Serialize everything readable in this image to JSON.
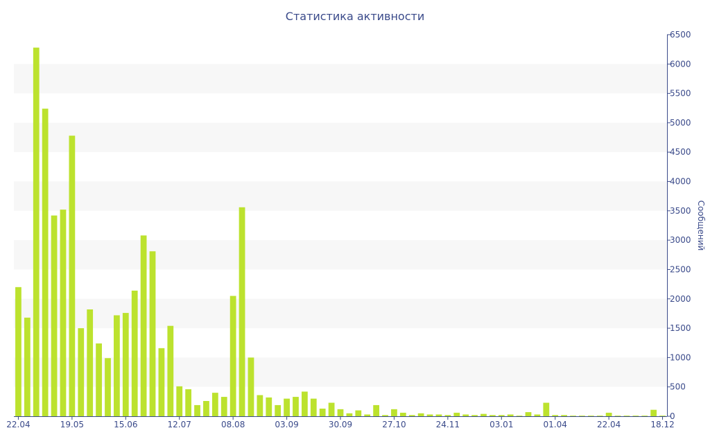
{
  "chart_data": {
    "type": "bar",
    "title": "Статистика активности",
    "xlabel": "",
    "ylabel": "Сообщений",
    "y_axis_side": "right",
    "ylim": [
      0,
      6500
    ],
    "y_ticks": [
      0,
      500,
      1000,
      1500,
      2000,
      2500,
      3000,
      3500,
      4000,
      4500,
      5000,
      5500,
      6000,
      6500
    ],
    "grid": "alternating horizontal bands",
    "x_tick_labels": [
      "22.04",
      "19.05",
      "15.06",
      "12.07",
      "08.08",
      "03.09",
      "30.09",
      "27.10",
      "24.11",
      "03.01",
      "01.04",
      "22.04",
      "18.12"
    ],
    "x_tick_label_bar_index": [
      0,
      6,
      12,
      18,
      24,
      30,
      36,
      42,
      48,
      54,
      60,
      66,
      72
    ],
    "bar_color": "#bce22e",
    "band_color": "#f7f7f7",
    "axis_color": "#3a4a8a",
    "values": [
      2200,
      1680,
      6280,
      5240,
      3420,
      3520,
      4780,
      1500,
      1820,
      1240,
      990,
      1720,
      1760,
      2140,
      3080,
      2810,
      1160,
      1540,
      510,
      460,
      190,
      260,
      400,
      330,
      2050,
      3560,
      1000,
      360,
      320,
      190,
      300,
      330,
      420,
      300,
      130,
      230,
      120,
      50,
      100,
      30,
      190,
      20,
      120,
      60,
      20,
      50,
      30,
      30,
      20,
      60,
      30,
      20,
      40,
      20,
      20,
      30,
      10,
      70,
      30,
      230,
      20,
      20,
      10,
      10,
      10,
      10,
      60,
      10,
      10,
      10,
      10,
      110,
      10
    ]
  }
}
